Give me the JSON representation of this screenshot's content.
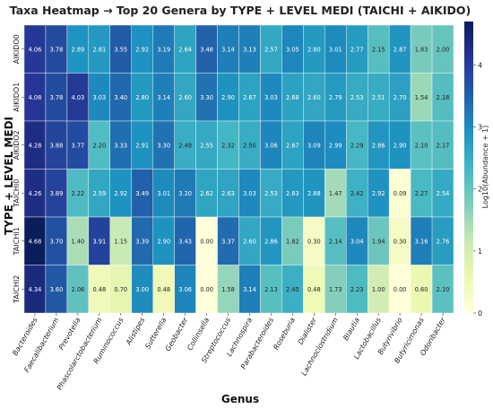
{
  "chart_data": {
    "type": "heatmap",
    "title": "Taxa Heatmap → Top 20 Genera by TYPE + LEVEL MEDI (TAICHI + AIKIDO)",
    "xlabel": "Genus",
    "ylabel": "TYPE + LEVEL MEDI",
    "colorbar_label": "Log10(Abundance + 1)",
    "colorbar_ticks": [
      "0",
      "1",
      "2",
      "3",
      "4"
    ],
    "colorbar_range": [
      0,
      4.7
    ],
    "colormap": "YlGnBu",
    "rows": [
      "AIKIDO0",
      "AIKIDO1",
      "AIKIDO2",
      "TAICHI0",
      "TAICHI1",
      "TAICHI2"
    ],
    "columns": [
      "Bacteroides",
      "Faecalibacterium",
      "Prevotella",
      "Phascolarctobacterium",
      "Ruminococcus",
      "Alistipes",
      "Sutterella",
      "Geobacter",
      "Collinsella",
      "Streptococcus",
      "Lachnospira",
      "Parabacteroides",
      "Roseburia",
      "Dialister",
      "Lachnoclostridium",
      "Blautia",
      "Lactobacillus",
      "Butyrivibrio",
      "Butyricimonas",
      "Odoribacter"
    ],
    "labels": [
      [
        "4.06",
        "3.78",
        "2.89",
        "2.81",
        "3.55",
        "2.92",
        "3.19",
        "2.64",
        "3.48",
        "3.14",
        "3.13",
        "2.57",
        "3.05",
        "2.80",
        "3.01",
        "2.77",
        "2.15",
        "2.87",
        "1.83",
        "2.00"
      ],
      [
        "4.08",
        "3.78",
        "4.03",
        "3.03",
        "3.40",
        "2.80",
        "3.14",
        "2.60",
        "3.30",
        "2.90",
        "2.67",
        "3.03",
        "2.68",
        "2.60",
        "2.79",
        "2.53",
        "2.51",
        "2.70",
        "1.54",
        "2.18"
      ],
      [
        "4.28",
        "3.88",
        "3.77",
        "2.20",
        "3.33",
        "2.91",
        "3.30",
        "2.49",
        "2.55",
        "2.32",
        "2.50",
        "3.06",
        "2.67",
        "3.09",
        "2.99",
        "2.29",
        "2.86",
        "2.90",
        "2.10",
        "2.17"
      ],
      [
        "4.26",
        "3.89",
        "2.22",
        "2.59",
        "2.92",
        "3.49",
        "3.01",
        "3.20",
        "2.62",
        "2.63",
        "3.03",
        "2.53",
        "2.83",
        "2.88",
        "1.47",
        "2.42",
        "2.92",
        "0.09",
        "2.27",
        "2.54"
      ],
      [
        "4.68",
        "3.70",
        "1.40",
        "3.91",
        "1.15",
        "3.39",
        "2.90",
        "3.43",
        "0.00",
        "3.37",
        "2.60",
        "2.86",
        "1.82",
        "0.30",
        "2.14",
        "3.04",
        "1.94",
        "0.30",
        "3.16",
        "2.76"
      ],
      [
        "4.34",
        "3.60",
        "2.06",
        "0.48",
        "0.70",
        "3.00",
        "0.48",
        "3.06",
        "0.00",
        "1.58",
        "3.14",
        "2.13",
        "2.45",
        "0.48",
        "1.73",
        "2.23",
        "1.00",
        "0.00",
        "0.60",
        "2.10"
      ]
    ]
  }
}
